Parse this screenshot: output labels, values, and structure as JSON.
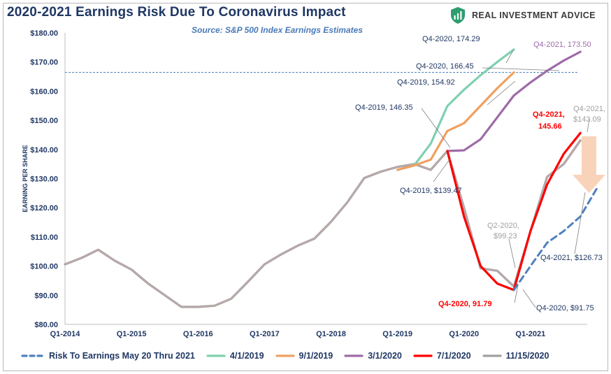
{
  "header": {
    "title": "2020-2021 Earnings Risk Due To Coronavirus Impact",
    "subtitle": "Source: S&P 500 Index Earnings Estimates",
    "brand": "REAL INVESTMENT ADVICE"
  },
  "chart_data": {
    "type": "line",
    "ylabel": "EARNING PER SHARE",
    "ylim": [
      80,
      180
    ],
    "y_ticks": [
      "$80.00",
      "$90.00",
      "$100.00",
      "$110.00",
      "$120.00",
      "$130.00",
      "$140.00",
      "$150.00",
      "$160.00",
      "$170.00",
      "$180.00"
    ],
    "y_tick_values": [
      80,
      90,
      100,
      110,
      120,
      130,
      140,
      150,
      160,
      170,
      180
    ],
    "x_ticks": [
      "Q1-2014",
      "Q1-2015",
      "Q1-2016",
      "Q1-2017",
      "Q1-2018",
      "Q1-2019",
      "Q1-2020",
      "Q1-2021"
    ],
    "x_tick_index": [
      0,
      4,
      8,
      12,
      16,
      20,
      24,
      28
    ],
    "quarters": [
      "Q1-2014",
      "Q2-2014",
      "Q3-2014",
      "Q4-2014",
      "Q1-2015",
      "Q2-2015",
      "Q3-2015",
      "Q4-2015",
      "Q1-2016",
      "Q2-2016",
      "Q3-2016",
      "Q4-2016",
      "Q1-2017",
      "Q2-2017",
      "Q3-2017",
      "Q4-2017",
      "Q1-2018",
      "Q2-2018",
      "Q3-2018",
      "Q4-2018",
      "Q1-2019",
      "Q2-2019",
      "Q3-2019",
      "Q4-2019",
      "Q1-2020",
      "Q2-2020",
      "Q3-2020",
      "Q4-2020",
      "Q1-2021",
      "Q2-2021",
      "Q3-2021",
      "Q4-2021"
    ],
    "reference_line": {
      "y": 166.45
    },
    "grid": false,
    "legend_position": "bottom",
    "series": [
      {
        "name": "4/1/2019",
        "color": "#7fd0b0",
        "start_index": 20,
        "values": [
          133.0,
          134.5,
          142.0,
          154.92,
          160.5,
          165.5,
          170.0,
          174.29
        ]
      },
      {
        "name": "9/1/2019",
        "color": "#f0a060",
        "start_index": 20,
        "values": [
          133.0,
          134.5,
          136.5,
          146.35,
          149.0,
          155.0,
          161.0,
          166.45
        ]
      },
      {
        "name": "3/1/2020",
        "color": "#9e6aa8",
        "start_index": 23,
        "values": [
          139.47,
          139.7,
          143.5,
          151.0,
          158.5,
          163.0,
          167.0,
          170.5,
          173.5
        ]
      },
      {
        "name": "7/1/2020",
        "color": "#ff0000",
        "start_index": 23,
        "values": [
          139.47,
          117.0,
          100.0,
          94.0,
          91.79,
          112.0,
          128.0,
          138.5,
          145.66
        ]
      },
      {
        "name": "11/15/2020",
        "color": "#a0a0a0",
        "start_index": 0,
        "values": [
          100.6,
          102.8,
          105.6,
          101.8,
          98.8,
          94.0,
          90.0,
          86.0,
          86.0,
          86.4,
          88.8,
          94.6,
          100.6,
          104.0,
          107.0,
          109.4,
          115.2,
          122.0,
          130.2,
          132.4,
          134.0,
          135.0,
          133.0,
          139.47,
          120.0,
          99.23,
          98.4,
          93.0,
          112.0,
          130.6,
          135.0,
          143.09
        ]
      },
      {
        "name": "Risk To Earnings May 20 Thru 2021",
        "color": "#4f81bd",
        "dashed": true,
        "start_index": 27,
        "values": [
          91.75,
          100.0,
          108.0,
          112.0,
          117.0,
          126.73
        ],
        "x_offset": 0.3
      }
    ],
    "legend_order": [
      "Risk To Earnings May 20 Thru 2021",
      "4/1/2019",
      "9/1/2019",
      "3/1/2020",
      "7/1/2020",
      "11/15/2020"
    ],
    "annotations": [
      {
        "text": "Q4-2020, 174.29",
        "color": "#1f3763"
      },
      {
        "text": "Q4-2020,  166.45",
        "color": "#1f3763"
      },
      {
        "text": "Q4-2019, 154.92",
        "color": "#1f3763"
      },
      {
        "text": "Q4-2019,  146.35",
        "color": "#1f3763"
      },
      {
        "text": "Q4-2019, $139.47",
        "color": "#1f3763"
      },
      {
        "text": "Q4-2021,  173.50",
        "color": "#9e6aa8"
      },
      {
        "text": "Q4-2021,",
        "color": "#ff0000"
      },
      {
        "text": "145.66",
        "color": "#ff0000"
      },
      {
        "text": "Q4-2021,",
        "color": "#a0a0a0"
      },
      {
        "text": "$143.09",
        "color": "#a0a0a0"
      },
      {
        "text": "Q2-2020,",
        "color": "#a0a0a0"
      },
      {
        "text": "$99.23",
        "color": "#a0a0a0"
      },
      {
        "text": "Q4-2020,  91.79",
        "color": "#ff0000"
      },
      {
        "text": "Q4-2020, $91.75",
        "color": "#1f3763"
      },
      {
        "text": "Q4-2021, $126.73",
        "color": "#1f3763"
      }
    ],
    "colors": {
      "axis_text": "#1f3763",
      "axis_line": "#bfbfbf",
      "reference_line": "#4f81bd",
      "risk_arrow": "#f8cbad"
    }
  }
}
